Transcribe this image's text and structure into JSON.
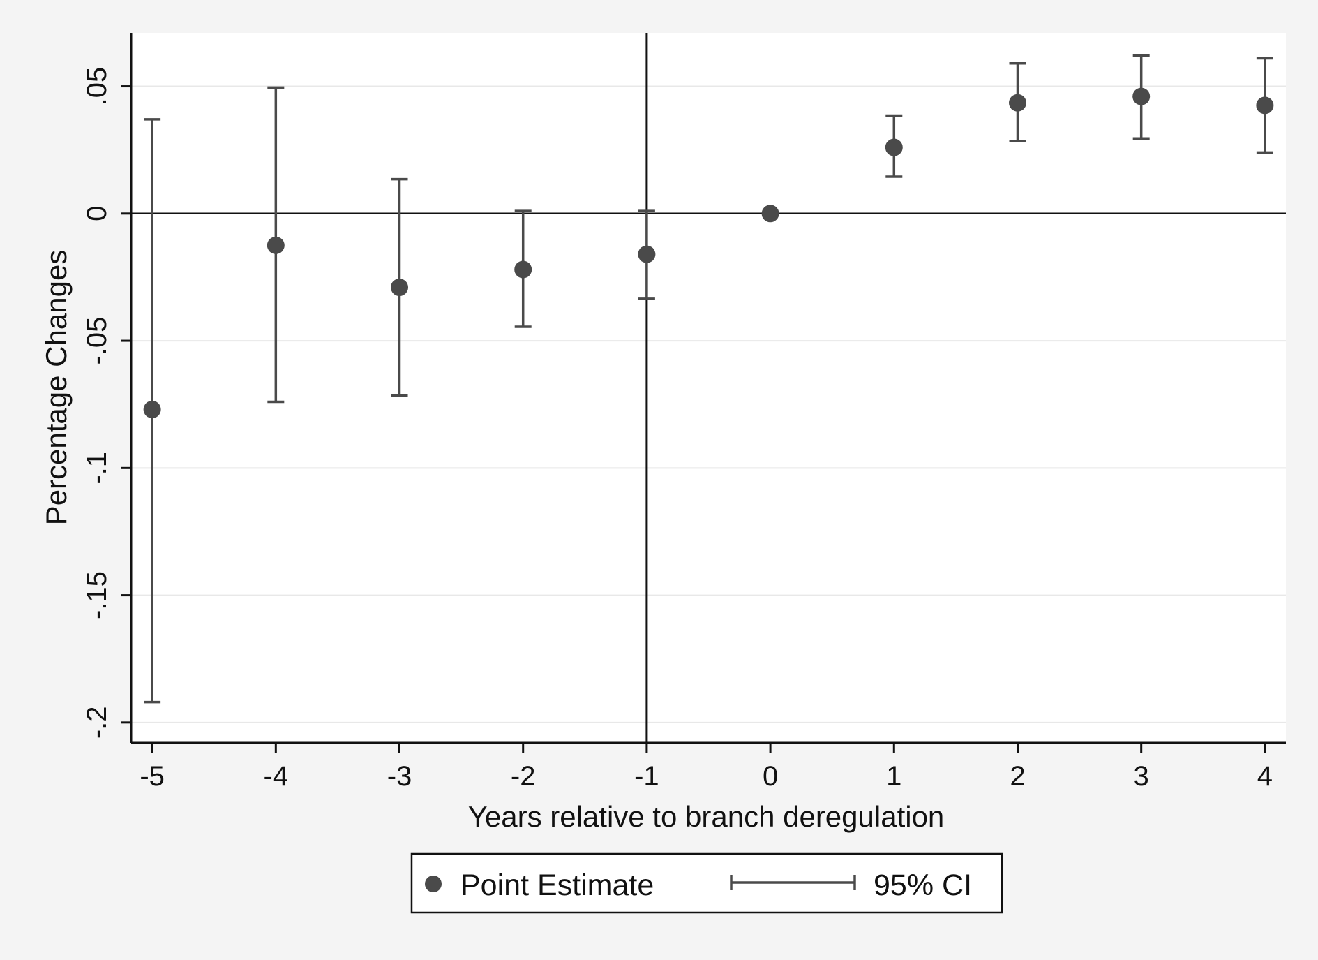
{
  "chart_data": {
    "type": "scatter",
    "title": "",
    "xlabel": "Years relative to branch deregulation",
    "ylabel": "Percentage Changes",
    "xlim": [
      -5.17,
      4.17
    ],
    "ylim": [
      -0.208,
      0.071
    ],
    "x_ticks": [
      -5,
      -4,
      -3,
      -2,
      -1,
      0,
      1,
      2,
      3,
      4
    ],
    "x_tick_labels": [
      "-5",
      "-4",
      "-3",
      "-2",
      "-1",
      "0",
      "1",
      "2",
      "3",
      "4"
    ],
    "y_ticks": [
      -0.2,
      -0.15,
      -0.1,
      -0.05,
      0,
      0.05
    ],
    "y_tick_labels": [
      "-.2",
      "-.15",
      "-.1",
      "-.05",
      "0",
      ".05"
    ],
    "grid": true,
    "reference_lines": {
      "horizontal_y": 0,
      "vertical_x": -1
    },
    "legend": {
      "placement": "bottom",
      "entries": [
        "Point Estimate",
        "95% CI"
      ]
    },
    "series": [
      {
        "name": "Point Estimate",
        "kind": "point",
        "x": [
          -5,
          -4,
          -3,
          -2,
          -1,
          0,
          1,
          2,
          3,
          4
        ],
        "values": [
          -0.077,
          -0.0125,
          -0.029,
          -0.022,
          -0.016,
          0.0,
          0.026,
          0.0435,
          0.046,
          0.0425
        ]
      },
      {
        "name": "95% CI",
        "kind": "errorbar",
        "x": [
          -5,
          -4,
          -3,
          -2,
          -1,
          0,
          1,
          2,
          3,
          4
        ],
        "lower": [
          -0.192,
          -0.074,
          -0.0715,
          -0.0445,
          -0.0335,
          null,
          0.0145,
          0.0285,
          0.0295,
          0.024
        ],
        "upper": [
          0.037,
          0.0495,
          0.0135,
          0.001,
          0.001,
          null,
          0.0385,
          0.059,
          0.062,
          0.061
        ]
      }
    ],
    "colors": {
      "marker": "#4a4a4a",
      "ci": "#4a4a4a",
      "axis": "#111111",
      "grid": "#e8e8e8",
      "plot_background": "#ffffff",
      "page_background": "#f4f4f4"
    }
  }
}
